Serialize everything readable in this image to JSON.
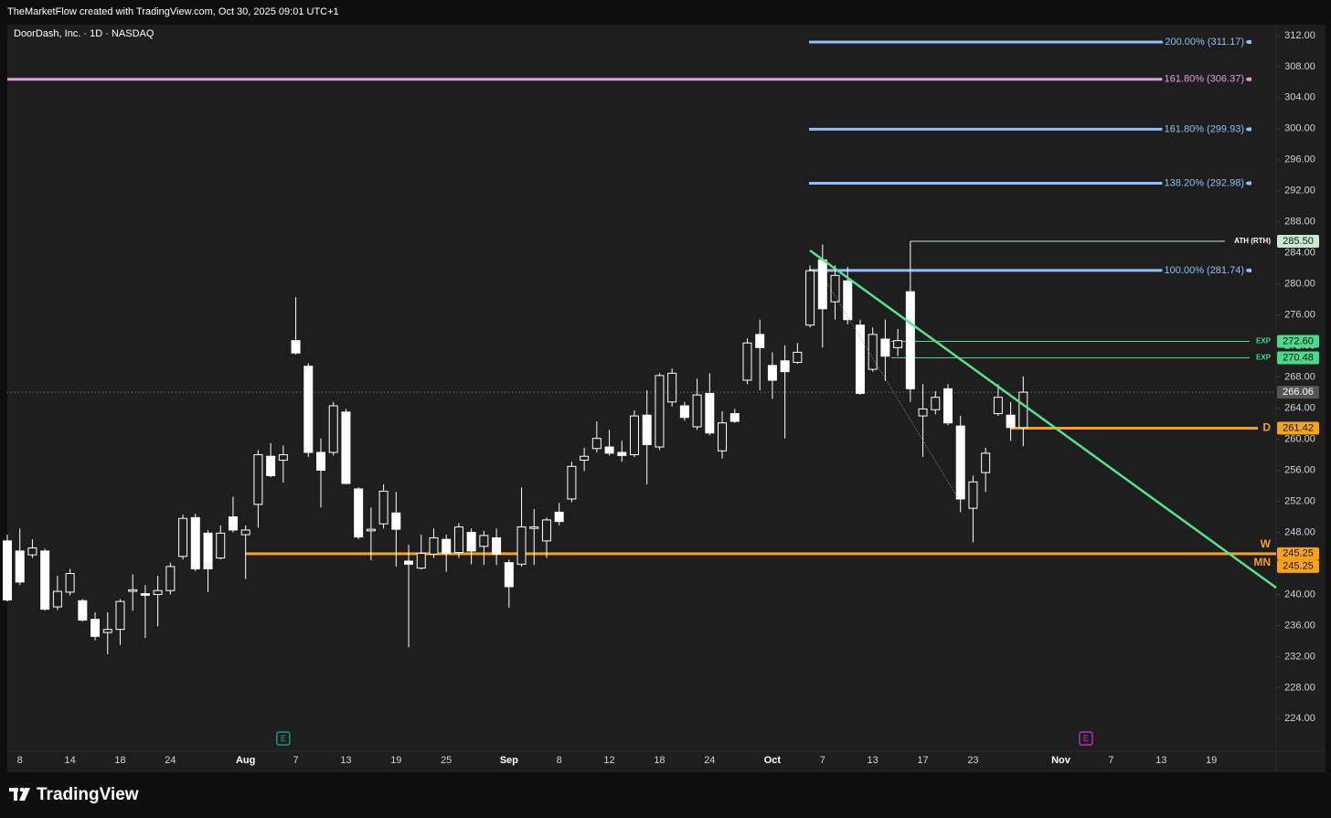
{
  "header": "TheMarketFlow created with TradingView.com, Oct 30, 2025 09:01 UTC+1",
  "footer": "TradingView",
  "chart_data": {
    "type": "candlestick",
    "title": "DoorDash, Inc. · 1D · NASDAQ",
    "categories": [
      null,
      "8",
      null,
      null,
      null,
      "14",
      null,
      null,
      null,
      "18",
      null,
      null,
      null,
      "24",
      null,
      null,
      null,
      null,
      null,
      "Aug",
      null,
      null,
      null,
      "7",
      null,
      null,
      null,
      "13",
      null,
      null,
      null,
      "19",
      null,
      null,
      null,
      "25",
      null,
      null,
      null,
      null,
      "Sep",
      null,
      null,
      null,
      "8",
      null,
      null,
      null,
      "12",
      null,
      null,
      null,
      "18",
      null,
      null,
      null,
      "24",
      null,
      null,
      null,
      null,
      "Oct",
      null,
      null,
      null,
      "7",
      null,
      null,
      null,
      "13",
      null,
      null,
      null,
      "17",
      null,
      null,
      null,
      "23",
      null,
      null,
      null,
      null,
      null,
      null,
      "Nov",
      null,
      null,
      null,
      "7",
      null,
      null,
      null,
      "13",
      null,
      null,
      null,
      "19",
      null,
      null,
      null,
      null,
      null
    ],
    "open": [
      246.9,
      245.6,
      245.1,
      245.6,
      238.4,
      240.3,
      239.2,
      236.8,
      235.1,
      235.5,
      240.4,
      240.1,
      240.0,
      240.5,
      244.9,
      249.9,
      247.9,
      244.7,
      250.0,
      247.7,
      251.6,
      257.8,
      257.3,
      272.7,
      269.4,
      258.3,
      258.3,
      263.5,
      253.6,
      248.2,
      249.1,
      250.5,
      244.3,
      243.4,
      245.2,
      247.1,
      245.4,
      248.0,
      246.2,
      247.3,
      244.1,
      243.9,
      248.5,
      246.9,
      250.6,
      252.3,
      257.3,
      258.8,
      259.0,
      258.3,
      258.0,
      263.1,
      259.0,
      264.8,
      264.3,
      261.6,
      265.9,
      258.5,
      263.3,
      267.6,
      273.5,
      269.5,
      270.1,
      269.9,
      274.7,
      283.1,
      277.7,
      280.4,
      274.7,
      269.0,
      272.9,
      271.8,
      279.0,
      263.0,
      263.8,
      266.5,
      261.7,
      251.1,
      255.7,
      263.3,
      263.1,
      261.5,
      null,
      null,
      null,
      null,
      null,
      null,
      null,
      null,
      null,
      null,
      null,
      null,
      null,
      null,
      null,
      null,
      null,
      null,
      null,
      null
    ],
    "high": [
      247.7,
      248.5,
      247.1,
      245.9,
      242.4,
      243.3,
      239.4,
      237.7,
      237.7,
      239.4,
      242.6,
      241.2,
      242.4,
      244.1,
      250.3,
      250.4,
      248.3,
      248.9,
      252.6,
      248.9,
      258.6,
      259.5,
      259.2,
      278.3,
      269.8,
      260.1,
      264.8,
      263.9,
      253.8,
      251.2,
      254.2,
      253.2,
      246.4,
      247.7,
      248.5,
      247.7,
      249.2,
      248.5,
      248.2,
      248.5,
      244.5,
      253.8,
      251.0,
      249.9,
      251.8,
      257.1,
      258.9,
      262.3,
      261.2,
      259.8,
      263.7,
      266.3,
      268.5,
      269.1,
      264.8,
      267.8,
      268.5,
      263.6,
      263.9,
      273.0,
      275.4,
      271.2,
      272.1,
      272.4,
      282.4,
      285.1,
      282.4,
      282.2,
      275.4,
      274.4,
      275.4,
      274.2,
      285.5,
      267.1,
      266.2,
      267.1,
      263.0,
      255.3,
      258.9,
      267.1,
      264.8,
      268.1,
      null,
      null,
      null,
      null,
      null,
      null,
      null,
      null,
      null,
      null,
      null,
      null,
      null,
      null,
      null,
      null,
      null,
      null,
      null,
      null
    ],
    "low": [
      239.1,
      241.2,
      244.7,
      237.9,
      238.0,
      239.9,
      236.5,
      234.1,
      232.3,
      233.5,
      237.9,
      234.4,
      235.9,
      240.0,
      244.5,
      243.0,
      240.3,
      244.5,
      248.0,
      242.0,
      248.6,
      255.1,
      254.4,
      270.9,
      257.7,
      251.2,
      257.9,
      254.2,
      247.1,
      244.4,
      248.5,
      243.6,
      233.2,
      243.2,
      244.7,
      242.9,
      244.7,
      243.9,
      243.8,
      243.8,
      238.3,
      243.6,
      243.8,
      244.7,
      248.9,
      251.9,
      255.9,
      258.3,
      257.9,
      257.1,
      257.7,
      254.2,
      258.6,
      264.2,
      262.4,
      261.2,
      260.5,
      257.5,
      262.1,
      267.1,
      266.3,
      265.2,
      260.1,
      269.7,
      274.4,
      271.8,
      275.4,
      274.8,
      265.7,
      268.7,
      267.5,
      270.7,
      264.8,
      257.7,
      263.2,
      261.8,
      250.6,
      246.7,
      253.2,
      263.0,
      259.8,
      259.1,
      null,
      null,
      null,
      null,
      null,
      null,
      null,
      null,
      null,
      null,
      null,
      null,
      null,
      null,
      null,
      null,
      null,
      null,
      null,
      null
    ],
    "close": [
      239.3,
      241.6,
      246.0,
      238.1,
      240.4,
      242.7,
      236.7,
      234.6,
      235.5,
      239.1,
      240.6,
      239.9,
      240.5,
      243.6,
      249.8,
      243.3,
      243.3,
      247.9,
      248.3,
      248.3,
      258.0,
      255.3,
      258.0,
      271.1,
      258.3,
      256.0,
      264.3,
      254.3,
      247.4,
      248.4,
      253.3,
      248.4,
      243.9,
      245.3,
      247.3,
      245.3,
      248.7,
      245.6,
      247.6,
      245.2,
      241.0,
      248.7,
      248.7,
      249.6,
      249.4,
      256.5,
      257.8,
      260.1,
      258.2,
      257.9,
      263.0,
      259.3,
      268.2,
      268.5,
      262.8,
      265.7,
      260.8,
      262.1,
      262.3,
      272.4,
      271.8,
      267.6,
      268.7,
      271.2,
      281.7,
      276.8,
      281.1,
      275.4,
      265.9,
      273.5,
      270.7,
      272.7,
      266.5,
      263.9,
      265.4,
      262.1,
      252.3,
      254.5,
      258.2,
      265.4,
      261.5,
      266.06,
      null,
      null,
      null,
      null,
      null,
      null,
      null,
      null,
      null,
      null,
      null,
      null,
      null,
      null,
      null,
      null,
      null,
      null,
      null,
      null
    ],
    "up_color": "#1e1e1e",
    "down_color": "#ffffff",
    "wick_color": "#ffffff",
    "ylim": [
      219.8,
      313.4
    ],
    "yticks": [
      {
        "value": 224,
        "label": "224.00"
      },
      {
        "value": 228,
        "label": "228.00"
      },
      {
        "value": 232,
        "label": "232.00"
      },
      {
        "value": 236,
        "label": "236.00"
      },
      {
        "value": 240,
        "label": "240.00"
      },
      {
        "value": 244,
        "label": "244.00"
      },
      {
        "value": 248,
        "label": "248.00"
      },
      {
        "value": 252,
        "label": "252.00"
      },
      {
        "value": 256,
        "label": "256.00"
      },
      {
        "value": 260,
        "label": "260.00"
      },
      {
        "value": 264,
        "label": "264.00"
      },
      {
        "value": 268,
        "label": "268.00"
      },
      {
        "value": 272,
        "label": "272.00"
      },
      {
        "value": 276,
        "label": "276.00"
      },
      {
        "value": 280,
        "label": "280.00"
      },
      {
        "value": 284,
        "label": "284.00"
      },
      {
        "value": 288,
        "label": "288.00"
      },
      {
        "value": 292,
        "label": "292.00"
      },
      {
        "value": 296,
        "label": "296.00"
      },
      {
        "value": 300,
        "label": "300.00"
      },
      {
        "value": 304,
        "label": "304.00"
      },
      {
        "value": 308,
        "label": "308.00"
      },
      {
        "value": 312,
        "label": "312.00"
      }
    ],
    "levels": [
      {
        "label": "200.00% (311.17)",
        "value": 311.17,
        "color": "#90bff9"
      },
      {
        "label": "161.80% (306.37)",
        "value": 306.37,
        "color": "#e39be6"
      },
      {
        "label": "161.80% (299.93)",
        "value": 299.93,
        "color": "#90bff9"
      },
      {
        "label": "138.20% (292.98)",
        "value": 292.98,
        "color": "#90bff9"
      },
      {
        "label": "100.00% (281.74)",
        "value": 281.74,
        "color": "#90bff9"
      }
    ],
    "price_tags": [
      {
        "name": "ATH (RTH)",
        "value": 285.5,
        "label": "285.50",
        "color": "#c8ecd0",
        "text_color": "#131313"
      },
      {
        "name": "EXP",
        "value": 272.6,
        "label": "272.60",
        "color": "#4cd98a",
        "text_color": "#131313"
      },
      {
        "name": "EXP",
        "value": 270.48,
        "label": "270.48",
        "color": "#4cd98a",
        "text_color": "#131313"
      },
      {
        "value": 266.06,
        "label": "266.06",
        "color": "#555555",
        "text_color": "#ffffff"
      },
      {
        "name": "D",
        "value": 261.42,
        "label": "261.42",
        "color": "#f7a21b",
        "text_color": "#131313"
      },
      {
        "name": "W",
        "value": 245.25,
        "label": "245.25",
        "color": "#f7a21b",
        "text_color": "#131313"
      },
      {
        "name": "MN",
        "value": 245.25,
        "label": "245.25",
        "color": "#f7a21b",
        "text_color": "#131313"
      }
    ],
    "events": [
      {
        "label": "E",
        "color": "#26a69a"
      },
      {
        "label": "E",
        "color": "#d62fd9"
      }
    ]
  }
}
